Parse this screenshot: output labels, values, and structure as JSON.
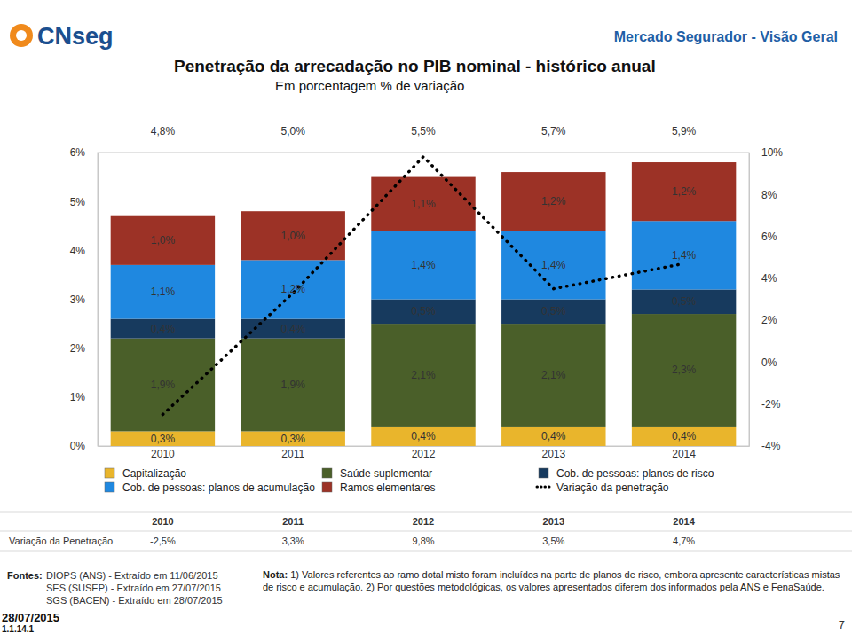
{
  "header": {
    "logo": "CNseg",
    "section": "Mercado Segurador - Visão Geral"
  },
  "chart_data": {
    "type": "bar",
    "title": "Penetração da arrecadação no PIB nominal - histórico anual",
    "subtitle": "Em porcentagem % de variação",
    "categories": [
      "2010",
      "2011",
      "2012",
      "2013",
      "2014"
    ],
    "annotations": [
      "4,8%",
      "5,0%",
      "5,5%",
      "5,7%",
      "5,9%"
    ],
    "stacked": true,
    "data_labels": true,
    "grid": false,
    "legend": "bottom",
    "ylim": [
      0,
      6
    ],
    "yticks": [
      {
        "value": 0,
        "label": "0%"
      },
      {
        "value": 1,
        "label": "1%"
      },
      {
        "value": 2,
        "label": "2%"
      },
      {
        "value": 3,
        "label": "3%"
      },
      {
        "value": 4,
        "label": "4%"
      },
      {
        "value": 5,
        "label": "5%"
      },
      {
        "value": 6,
        "label": "6%"
      }
    ],
    "y2lim": [
      -4,
      10
    ],
    "y2ticks": [
      {
        "value": -4,
        "label": "-4%"
      },
      {
        "value": -2,
        "label": "-2%"
      },
      {
        "value": 0,
        "label": "0%"
      },
      {
        "value": 2,
        "label": "2%"
      },
      {
        "value": 4,
        "label": "4%"
      },
      {
        "value": 6,
        "label": "6%"
      },
      {
        "value": 8,
        "label": "8%"
      },
      {
        "value": 10,
        "label": "10%"
      }
    ],
    "series": [
      {
        "name": "Capitalização",
        "color": "#E9B52C",
        "values": [
          0.3,
          0.3,
          0.4,
          0.4,
          0.4
        ],
        "value_labels": [
          "0,3%",
          "0,3%",
          "0,4%",
          "0,4%",
          "0,4%"
        ]
      },
      {
        "name": "Saúde suplementar",
        "color": "#4A5F29",
        "values": [
          1.9,
          1.9,
          2.1,
          2.1,
          2.3
        ],
        "value_labels": [
          "1,9%",
          "1,9%",
          "2,1%",
          "2,1%",
          "2,3%"
        ]
      },
      {
        "name": "Cob. de pessoas: planos de risco",
        "color": "#173A5E",
        "values": [
          0.4,
          0.4,
          0.5,
          0.5,
          0.5
        ],
        "value_labels": [
          "0,4%",
          "0,4%",
          "0,5%",
          "0,5%",
          "0,5%"
        ]
      },
      {
        "name": "Cob. de pessoas: planos de acumulação",
        "color": "#1F88E0",
        "values": [
          1.1,
          1.2,
          1.4,
          1.4,
          1.4
        ],
        "value_labels": [
          "1,1%",
          "1,2%",
          "1,4%",
          "1,4%",
          "1,4%"
        ]
      },
      {
        "name": "Ramos elementares",
        "color": "#9C3226",
        "values": [
          1.0,
          1.0,
          1.1,
          1.2,
          1.2
        ],
        "value_labels": [
          "1,0%",
          "1,0%",
          "1,1%",
          "1,2%",
          "1,2%"
        ]
      },
      {
        "name": "Variação da penetração",
        "type": "line",
        "axis": "y2",
        "color": "#000000",
        "line_style": "dotted",
        "values": [
          -2.5,
          3.3,
          9.8,
          3.5,
          4.7
        ]
      }
    ]
  },
  "table": {
    "columns": [
      "2010",
      "2011",
      "2012",
      "2013",
      "2014"
    ],
    "rows": [
      {
        "label": "Variação da Penetração",
        "cells": [
          "-2,5%",
          "3,3%",
          "9,8%",
          "3,5%",
          "4,7%"
        ]
      }
    ]
  },
  "footer": {
    "sources_label": "Fontes:",
    "sources": [
      "DIOPS (ANS) - Extraído em 11/06/2015",
      "SES (SUSEP) - Extraído em 27/07/2015",
      "SGS (BACEN) - Extraído em 28/07/2015"
    ],
    "note_label": "Nota:",
    "note": "1) Valores referentes ao ramo dotal misto foram incluídos na parte de planos de risco, embora apresente características mistas de risco e acumulação. 2) Por questões metodológicas, os valores apresentados diferem dos informados pela ANS e FenaSaúde.",
    "date": "28/07/2015",
    "code": "1.1.14.1",
    "page": "7"
  }
}
